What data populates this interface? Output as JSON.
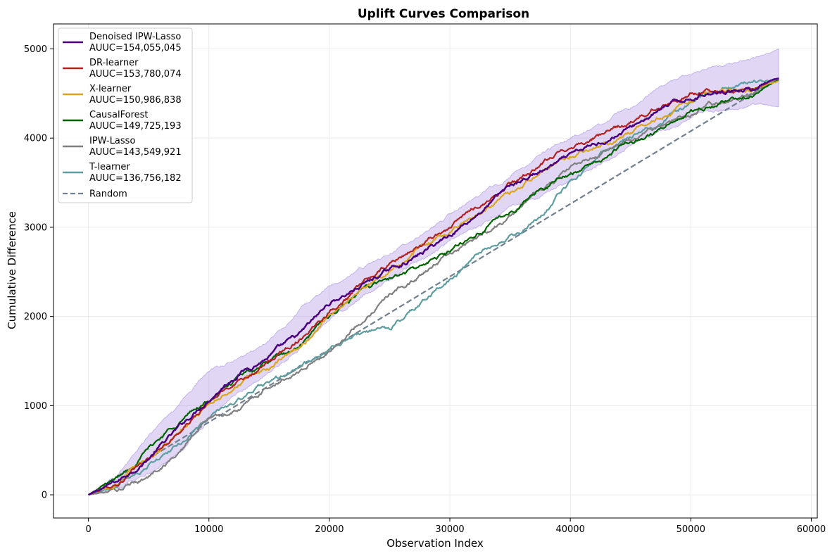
{
  "chart_data": {
    "type": "line",
    "title": "Uplift Curves Comparison",
    "xlabel": "Observation Index",
    "ylabel": "Cumulative Difference",
    "xlim": [
      -2900,
      60500
    ],
    "ylim": [
      -260,
      5280
    ],
    "xticks": [
      0,
      10000,
      20000,
      30000,
      40000,
      50000,
      60000
    ],
    "yticks": [
      0,
      1000,
      2000,
      3000,
      4000,
      5000
    ],
    "grid": true,
    "legend_position": "upper-left",
    "band": {
      "name": "Denoised IPW-Lasso interval",
      "color": "#9370DB",
      "x": [
        0,
        2500,
        5000,
        7500,
        10000,
        12500,
        15000,
        17500,
        20000,
        22500,
        25000,
        27500,
        30000,
        32500,
        35000,
        37500,
        40000,
        42500,
        45000,
        47500,
        50000,
        52500,
        55000,
        57300
      ],
      "lower": [
        0,
        80,
        250,
        480,
        860,
        1170,
        1360,
        1640,
        1980,
        2200,
        2420,
        2620,
        2850,
        3000,
        3200,
        3350,
        3520,
        3720,
        3930,
        4080,
        4220,
        4330,
        4370,
        4350
      ],
      "upper": [
        0,
        230,
        650,
        1000,
        1380,
        1520,
        1730,
        2060,
        2330,
        2520,
        2700,
        2880,
        3140,
        3360,
        3560,
        3800,
        3990,
        4140,
        4340,
        4560,
        4720,
        4800,
        4870,
        5000
      ]
    },
    "x": [
      0,
      2500,
      5000,
      7500,
      10000,
      12500,
      15000,
      17500,
      20000,
      22500,
      25000,
      27500,
      30000,
      32500,
      35000,
      37500,
      40000,
      42500,
      45000,
      47500,
      50000,
      52500,
      55000,
      57300
    ],
    "series": [
      {
        "name": "Denoised IPW-Lasso",
        "auuc": "AUUC=154,055,045",
        "color": "#4B0082",
        "width": 2.5,
        "dash": "",
        "values": [
          0,
          150,
          420,
          740,
          1090,
          1380,
          1560,
          1770,
          2140,
          2340,
          2520,
          2690,
          2920,
          3180,
          3460,
          3620,
          3780,
          3950,
          4120,
          4320,
          4450,
          4550,
          4560,
          4670
        ]
      },
      {
        "name": "DR-learner",
        "auuc": "AUUC=153,780,074",
        "color": "#B22222",
        "width": 2.2,
        "dash": "",
        "values": [
          0,
          140,
          400,
          700,
          1020,
          1300,
          1480,
          1750,
          2080,
          2330,
          2580,
          2790,
          3000,
          3250,
          3480,
          3680,
          3910,
          4040,
          4160,
          4360,
          4510,
          4530,
          4550,
          4670
        ]
      },
      {
        "name": "X-learner",
        "auuc": "AUUC=150,986,838",
        "color": "#DAA520",
        "width": 2.2,
        "dash": "",
        "values": [
          0,
          170,
          420,
          670,
          1020,
          1270,
          1420,
          1620,
          2030,
          2300,
          2500,
          2770,
          2960,
          3180,
          3380,
          3620,
          3810,
          3930,
          4070,
          4250,
          4440,
          4490,
          4520,
          4640
        ]
      },
      {
        "name": "CausalForest",
        "auuc": "AUUC=149,725,193",
        "color": "#006400",
        "width": 2.2,
        "dash": "",
        "values": [
          0,
          200,
          520,
          830,
          1060,
          1310,
          1480,
          1640,
          2000,
          2260,
          2420,
          2540,
          2720,
          2960,
          3160,
          3440,
          3600,
          3760,
          3960,
          4110,
          4290,
          4380,
          4490,
          4650
        ]
      },
      {
        "name": "IPW-Lasso",
        "auuc": "AUUC=143,549,921",
        "color": "#808080",
        "width": 2.2,
        "dash": "",
        "values": [
          0,
          50,
          200,
          480,
          860,
          960,
          1210,
          1400,
          1600,
          1930,
          2260,
          2450,
          2700,
          2890,
          3120,
          3420,
          3660,
          3820,
          3980,
          4150,
          4250,
          4410,
          4510,
          4670
        ]
      },
      {
        "name": "T-learner",
        "auuc": "AUUC=136,756,182",
        "color": "#5F9EA0",
        "width": 2.2,
        "dash": "",
        "values": [
          0,
          120,
          340,
          560,
          870,
          1060,
          1260,
          1410,
          1630,
          1800,
          1850,
          2140,
          2420,
          2680,
          2890,
          3090,
          3500,
          3800,
          4020,
          4180,
          4390,
          4560,
          4640,
          4640
        ]
      },
      {
        "name": "Random",
        "auuc": "",
        "color": "#708090",
        "width": 2.2,
        "dash": "8,4",
        "values": [
          0,
          204,
          408,
          612,
          815,
          1019,
          1223,
          1427,
          1631,
          1835,
          2039,
          2243,
          2447,
          2650,
          2854,
          3058,
          3262,
          3466,
          3670,
          3874,
          4078,
          4282,
          4486,
          4673
        ]
      }
    ]
  }
}
